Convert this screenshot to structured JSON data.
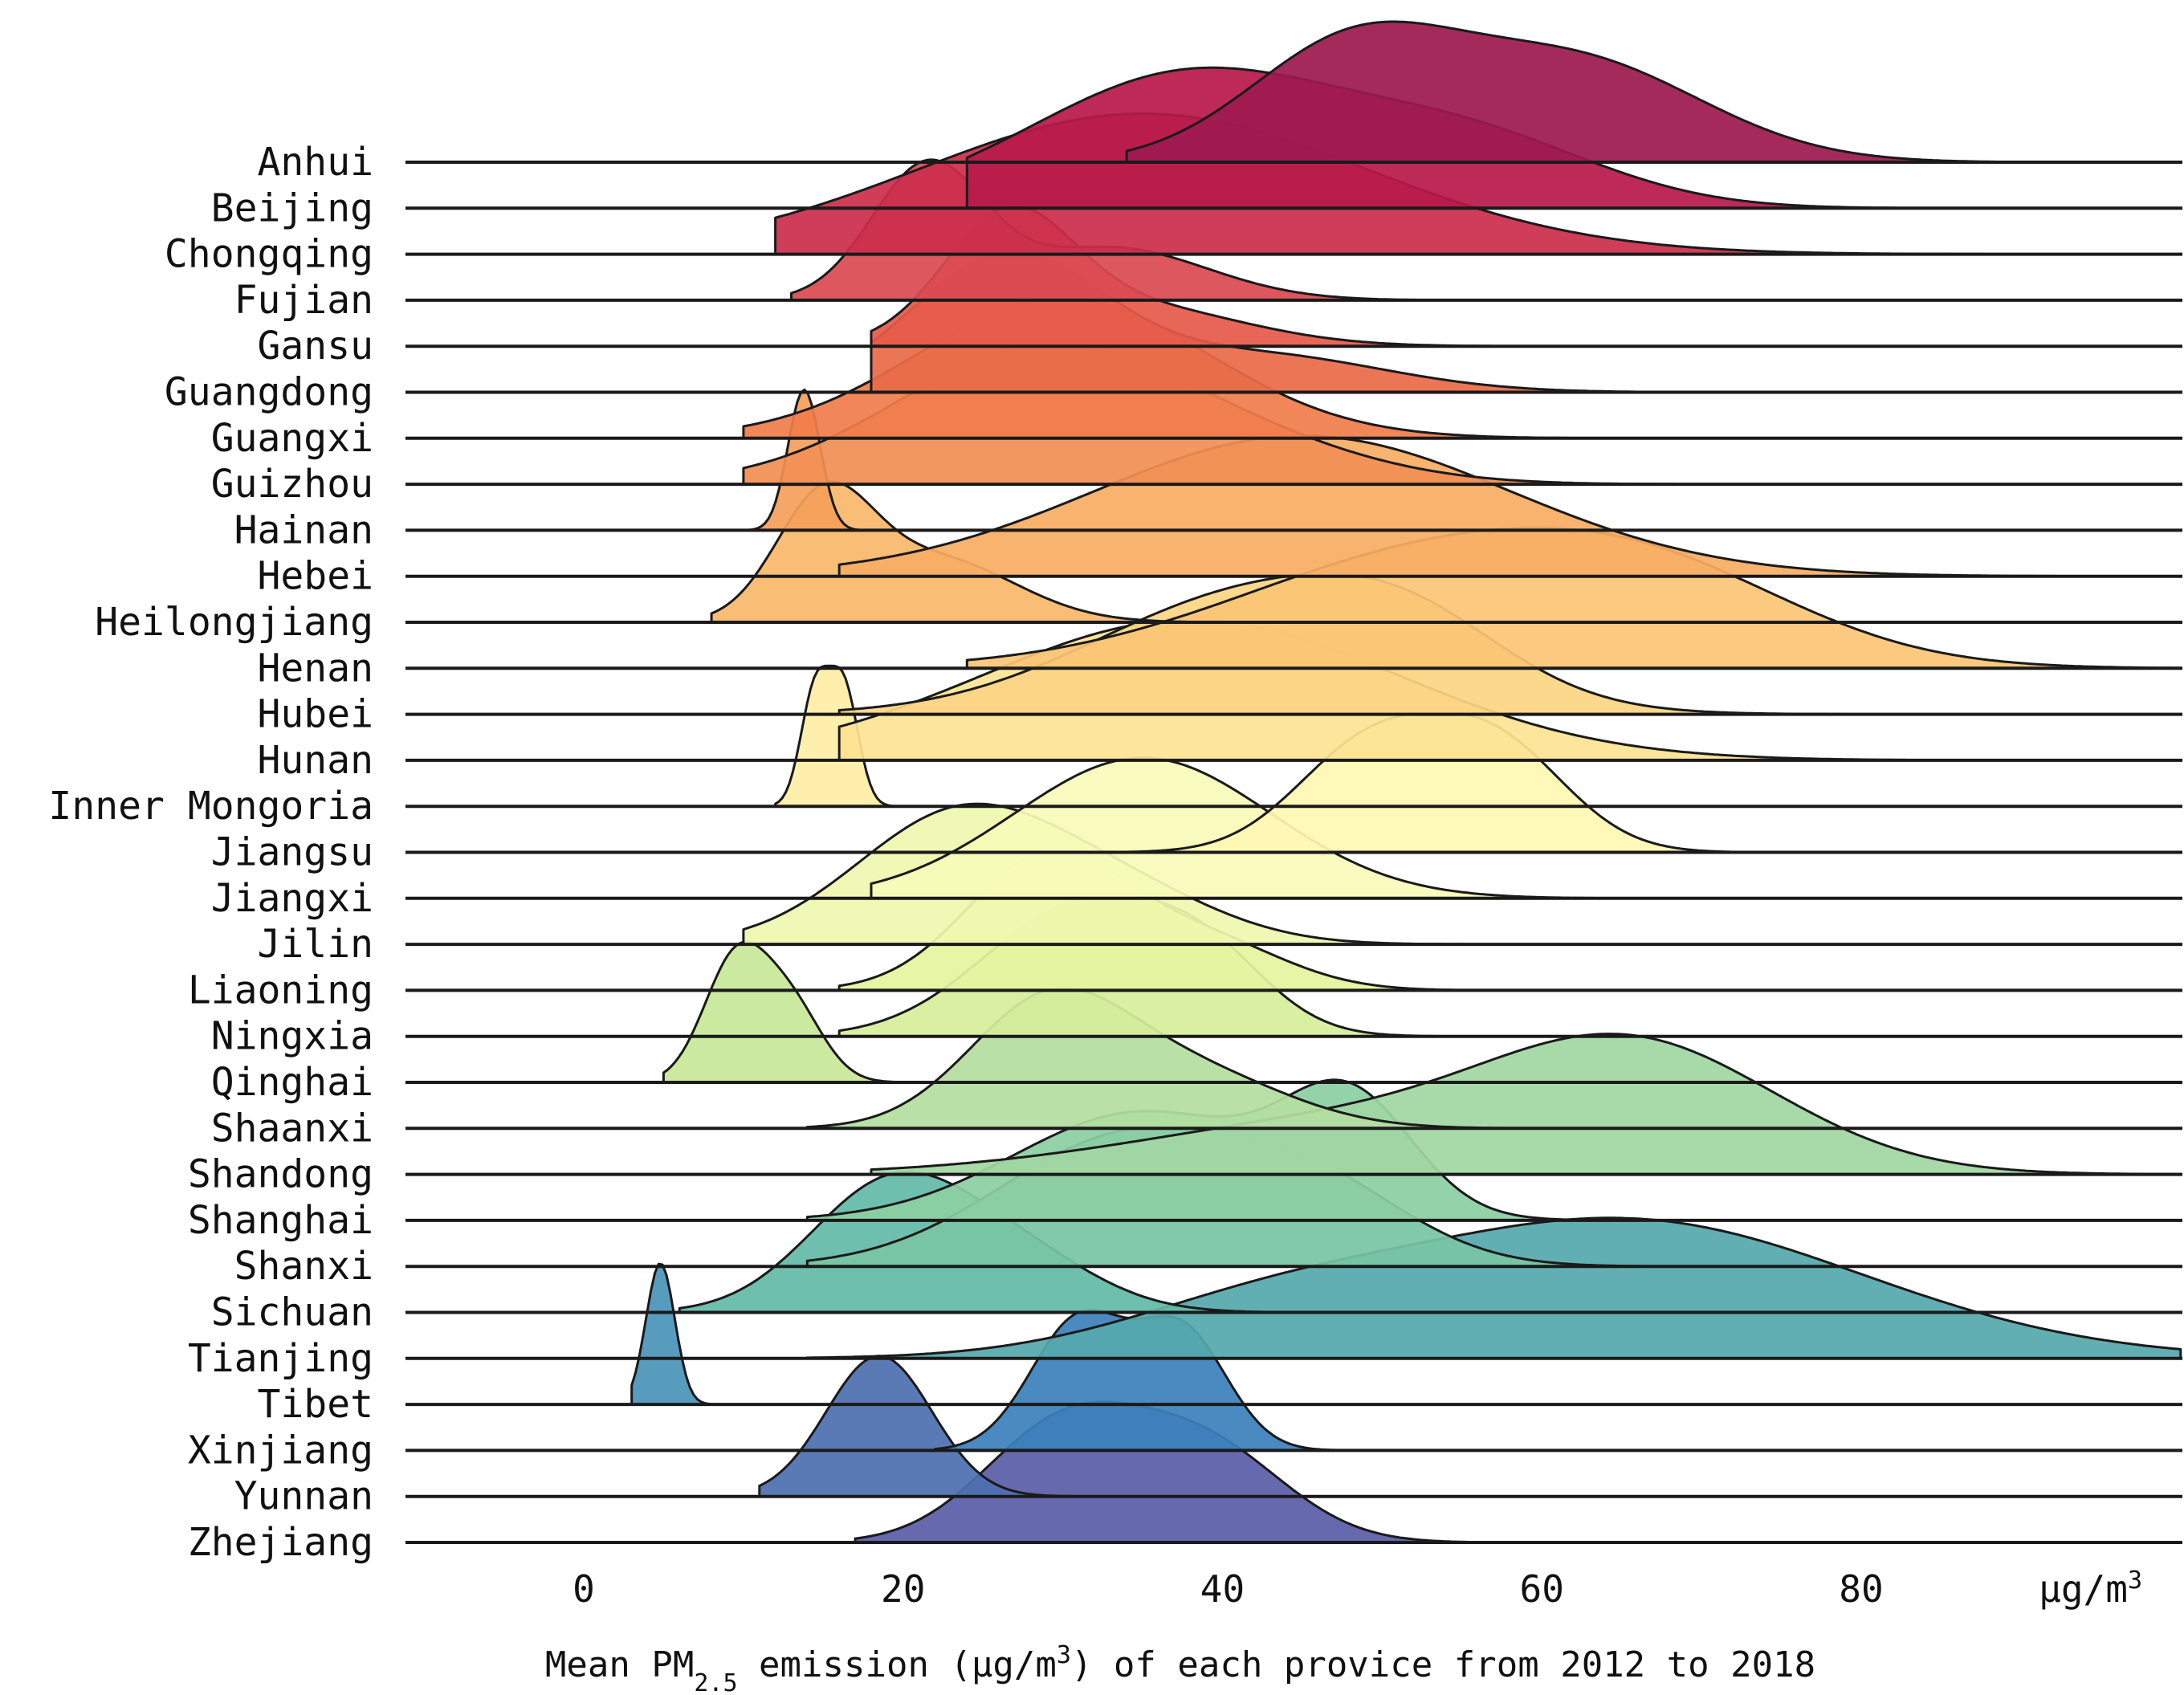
{
  "chart_data": {
    "type": "ridgeline",
    "title": "",
    "xlabel": "μg/m³",
    "caption": {
      "prefix": "Mean PM",
      "sub": "2.5",
      "middle": " emission (μg/m",
      "sup": "3",
      "suffix": ") of each provice from 2012 to 2018"
    },
    "unit_label": {
      "main": "μg/m",
      "sup": "3"
    },
    "xlim": [
      -10,
      100
    ],
    "xticks": [
      0,
      20,
      40,
      60,
      80
    ],
    "xtick_labels": [
      "0",
      "20",
      "40",
      "60",
      "80"
    ],
    "grid": false,
    "series": [
      {
        "name": "Anhui",
        "color": "#9e1a50",
        "components": [
          [
            48,
            6.5,
            1.0
          ],
          [
            62,
            8,
            0.9
          ]
        ],
        "range": [
          34,
          100
        ]
      },
      {
        "name": "Beijing",
        "color": "#b81a4a",
        "components": [
          [
            38,
            10,
            1.0
          ],
          [
            56,
            8,
            0.45
          ]
        ],
        "range": [
          24,
          100
        ]
      },
      {
        "name": "Chongqing",
        "color": "#cb2e4c",
        "components": [
          [
            35,
            14,
            1.0
          ]
        ],
        "range": [
          12,
          100
        ]
      },
      {
        "name": "Fujian",
        "color": "#da4a52",
        "components": [
          [
            21.5,
            3.5,
            1.0
          ],
          [
            33,
            6,
            0.4
          ]
        ],
        "range": [
          13,
          100
        ]
      },
      {
        "name": "Gansu",
        "color": "#e65a4a",
        "components": [
          [
            26.5,
            4,
            1.0
          ],
          [
            34,
            7,
            0.35
          ]
        ],
        "range": [
          18,
          100
        ]
      },
      {
        "name": "Guangdong",
        "color": "#ea6c49",
        "components": [
          [
            26.5,
            6,
            1.0
          ],
          [
            42,
            8,
            0.28
          ]
        ],
        "range": [
          18,
          100
        ]
      },
      {
        "name": "Guangxi",
        "color": "#f07d4b",
        "components": [
          [
            30,
            9,
            1.0
          ]
        ],
        "range": [
          10,
          100
        ]
      },
      {
        "name": "Guizhou",
        "color": "#f28f55",
        "components": [
          [
            28.5,
            9,
            1.0
          ],
          [
            42,
            8,
            0.2
          ]
        ],
        "range": [
          10,
          100
        ]
      },
      {
        "name": "Hainan",
        "color": "#f59f5b",
        "components": [
          [
            13.8,
            1.0,
            1.0
          ]
        ],
        "range": [
          10,
          100
        ]
      },
      {
        "name": "Hebei",
        "color": "#f7ad64",
        "components": [
          [
            45,
            13,
            1.0
          ]
        ],
        "range": [
          16,
          100
        ]
      },
      {
        "name": "Heilongjiang",
        "color": "#f9b86b",
        "components": [
          [
            15,
            3,
            0.9
          ],
          [
            22,
            5,
            0.5
          ]
        ],
        "range": [
          8,
          100
        ]
      },
      {
        "name": "Henan",
        "color": "#fbc575",
        "components": [
          [
            54,
            13,
            1.0
          ],
          [
            68,
            9,
            0.45
          ]
        ],
        "range": [
          24,
          100
        ]
      },
      {
        "name": "Hubei",
        "color": "#fcd584",
        "components": [
          [
            42,
            10,
            1.0
          ],
          [
            52,
            6,
            0.4
          ]
        ],
        "range": [
          16,
          100
        ]
      },
      {
        "name": "Hunan",
        "color": "#fde393",
        "components": [
          [
            38,
            13,
            1.0
          ]
        ],
        "range": [
          16,
          100
        ]
      },
      {
        "name": "Inner Mongoria",
        "color": "#feeea6",
        "components": [
          [
            14.5,
            0.9,
            1.0
          ],
          [
            16.3,
            0.9,
            1.0
          ]
        ],
        "range": [
          12,
          100
        ]
      },
      {
        "name": "Jiangsu",
        "color": "#fff8b4",
        "components": [
          [
            49,
            4.5,
            0.95
          ],
          [
            57,
            4.5,
            1.0
          ]
        ],
        "range": [
          34,
          100
        ]
      },
      {
        "name": "Jiangxi",
        "color": "#f8fbb8",
        "components": [
          [
            35,
            8,
            1.0
          ]
        ],
        "range": [
          18,
          100
        ]
      },
      {
        "name": "Jilin",
        "color": "#eef8ae",
        "components": [
          [
            23.5,
            6.5,
            1.0
          ],
          [
            34,
            6,
            0.35
          ]
        ],
        "range": [
          10,
          100
        ]
      },
      {
        "name": "Liaoning",
        "color": "#e4f49f",
        "components": [
          [
            29,
            5,
            1.0
          ],
          [
            39,
            5,
            0.35
          ]
        ],
        "range": [
          16,
          100
        ]
      },
      {
        "name": "Ningxia",
        "color": "#d6ee9b",
        "components": [
          [
            31,
            6,
            1.0
          ],
          [
            39,
            4,
            0.45
          ]
        ],
        "range": [
          16,
          100
        ]
      },
      {
        "name": "Qinghai",
        "color": "#c8e898",
        "components": [
          [
            9.5,
            2,
            1.0
          ],
          [
            13,
            2,
            0.6
          ]
        ],
        "range": [
          5,
          100
        ]
      },
      {
        "name": "Shaanxi",
        "color": "#b4dfa0",
        "components": [
          [
            29,
            5,
            1.0
          ],
          [
            38,
            6,
            0.45
          ]
        ],
        "range": [
          14,
          100
        ]
      },
      {
        "name": "Shandong",
        "color": "#a0d6a2",
        "components": [
          [
            49,
            14,
            0.5
          ],
          [
            66,
            9,
            1.0
          ]
        ],
        "range": [
          18,
          100
        ]
      },
      {
        "name": "Shanghai",
        "color": "#8ccfa2",
        "components": [
          [
            35,
            8,
            0.8
          ],
          [
            48,
            4,
            0.8
          ]
        ],
        "range": [
          14,
          100
        ]
      },
      {
        "name": "Shanxi",
        "color": "#78c5a5",
        "components": [
          [
            34,
            8,
            1.0
          ],
          [
            46,
            6,
            0.5
          ]
        ],
        "range": [
          14,
          100
        ]
      },
      {
        "name": "Sichuan",
        "color": "#63baa8",
        "components": [
          [
            19,
            5,
            1.0
          ],
          [
            27,
            5,
            0.45
          ]
        ],
        "range": [
          6,
          100
        ]
      },
      {
        "name": "Tianjing",
        "color": "#55a9ad",
        "components": [
          [
            65,
            15,
            1.0
          ],
          [
            42,
            9,
            0.25
          ]
        ],
        "range": [
          14,
          100
        ]
      },
      {
        "name": "Tibet",
        "color": "#4a95b8",
        "components": [
          [
            4.8,
            0.9,
            1.0
          ]
        ],
        "range": [
          3,
          100
        ]
      },
      {
        "name": "Xinjiang",
        "color": "#3c81bc",
        "components": [
          [
            31,
            3,
            1.0
          ],
          [
            37.5,
            2.8,
            0.9
          ]
        ],
        "range": [
          22,
          100
        ]
      },
      {
        "name": "Yunnan",
        "color": "#4d70b0",
        "components": [
          [
            18.5,
            3.3,
            1.0
          ]
        ],
        "range": [
          11,
          100
        ]
      },
      {
        "name": "Zhejiang",
        "color": "#5a5ea8",
        "components": [
          [
            30,
            5,
            1.0
          ],
          [
            39,
            5,
            0.8
          ]
        ],
        "range": [
          17,
          100
        ]
      }
    ]
  }
}
